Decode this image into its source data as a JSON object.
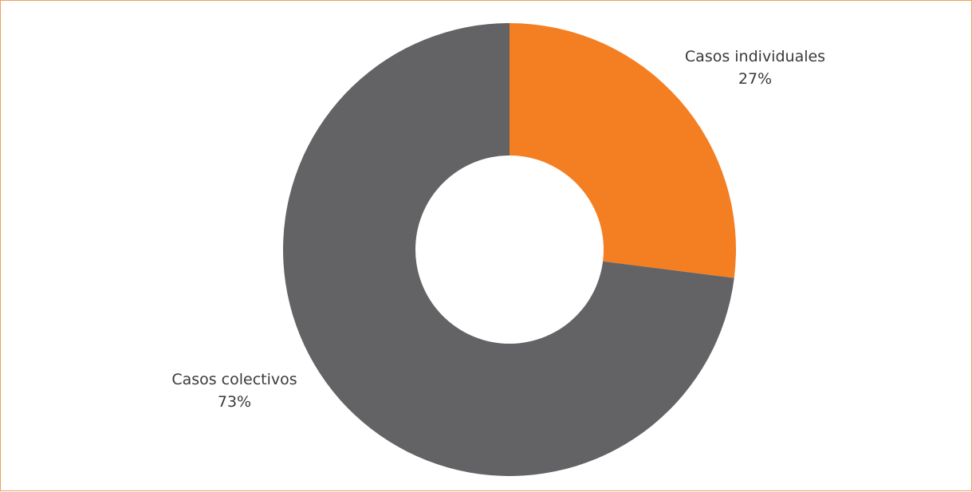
{
  "chart_data": {
    "type": "pie",
    "variant": "donut",
    "title": "",
    "slices": [
      {
        "label": "Casos individuales",
        "value": 27,
        "value_label": "27%",
        "color": "#f47e22"
      },
      {
        "label": "Casos colectivos",
        "value": 73,
        "value_label": "73%",
        "color": "#636365"
      }
    ],
    "start_angle": "12 o'clock",
    "direction": "clockwise",
    "legend": "none"
  },
  "colors": {
    "border": "#f0a05a",
    "background": "#ffffff"
  }
}
